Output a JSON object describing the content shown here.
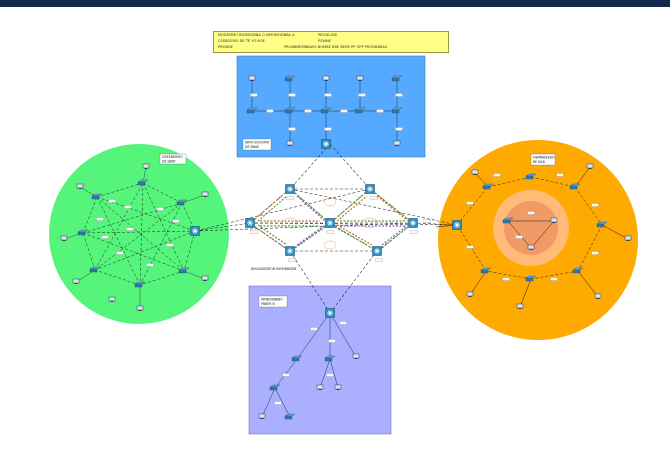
{
  "info_box": {
    "line1_left": "MODEMMO BOMMOBBA O MMOMODBBA A",
    "line1_right": "PRODLASE",
    "line2_left": "CSSBOSMO DE TE YO BOE",
    "line2_right": "PSWNE",
    "line3_left": "PROBDE",
    "line3_right": "PROBBNRMBBASS BOMBE BBE BEEB PP OPP PRODBBBAS"
  },
  "zones": {
    "green": {
      "name": "GREENERMO",
      "sub": "DE BBAT"
    },
    "blue": {
      "name": "WMO BOGOMO",
      "sub": "DE BBAE"
    },
    "purple": {
      "name": "WMBOBBBBO",
      "sub": "PBBER B"
    },
    "orange": {
      "name": "GWMBBSEBO",
      "sub": "BE BAB"
    }
  },
  "core_label": "BBOADBBROB BWMBBBRB",
  "colors": {
    "green_zone": "#55f57c",
    "blue_zone": "#55aaff",
    "purple_zone": "#aab0ff",
    "orange_zone": "#ffaa00",
    "inner_ring": "#ffbb77",
    "inner_core": "#f29a66",
    "info_box": "#ffff88",
    "top_bar": "#13294b"
  }
}
